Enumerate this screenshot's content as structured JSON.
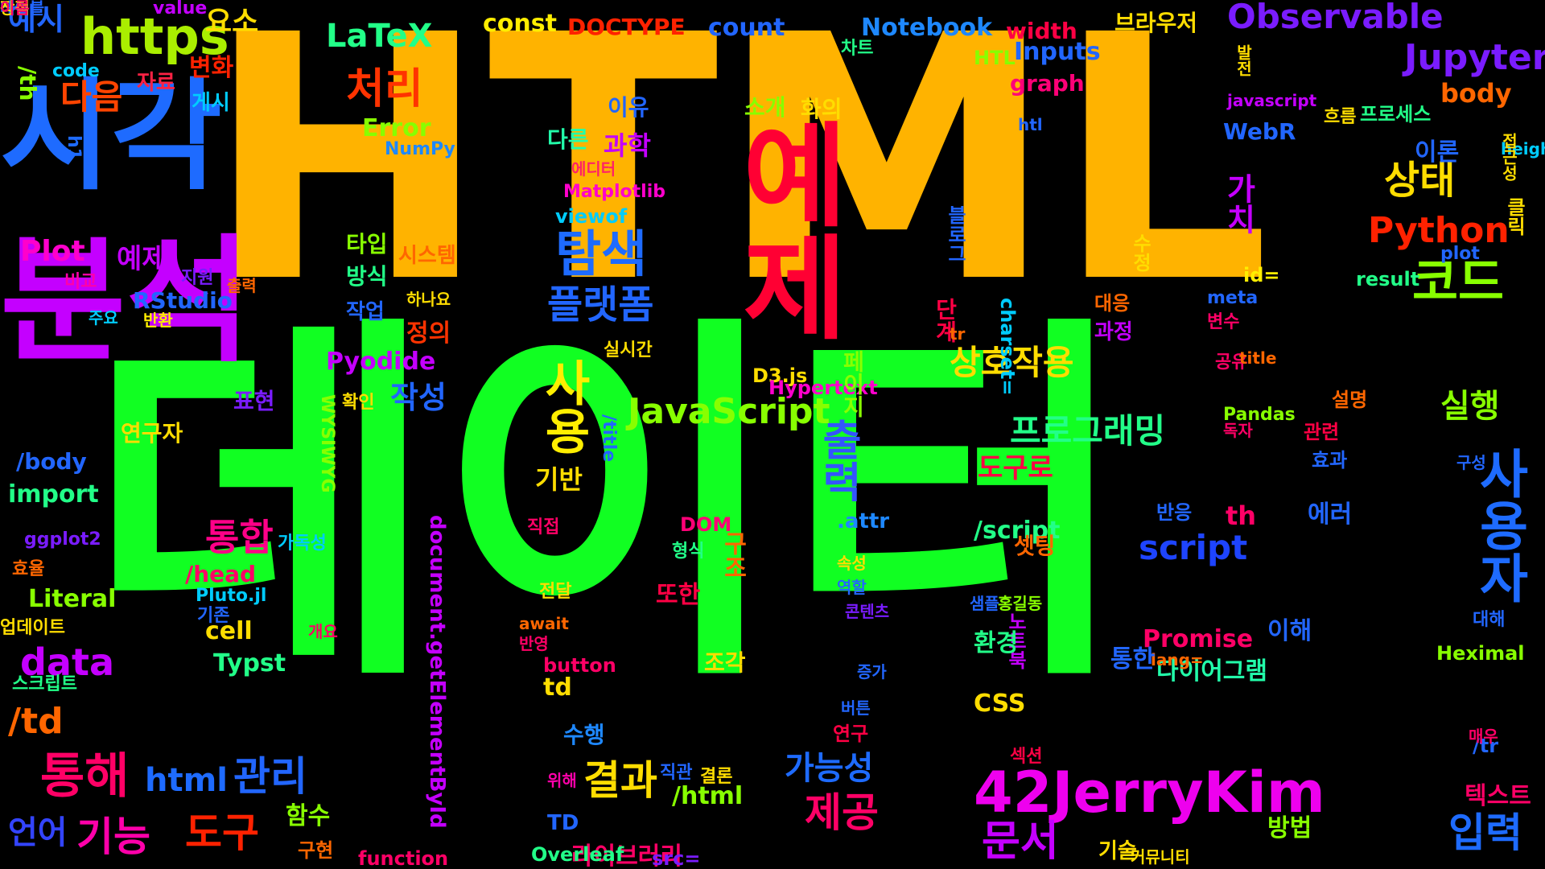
{
  "colors": {
    "background": "#000000",
    "palette": [
      "#ffbb00",
      "#00ff33",
      "#1e6bff",
      "#c800ff",
      "#ff0044",
      "#ff5500",
      "#aaff00",
      "#ffdd00",
      "#00ffaa",
      "#ff00cc",
      "#00ccff",
      "#7a1cff"
    ]
  },
  "words": [
    {
      "text": "HTML",
      "color": "#ffb300"
    },
    {
      "text": "데이터",
      "color": "#11ff22"
    },
    {
      "text": "시각",
      "color": "#1e6bff"
    },
    {
      "text": "분석",
      "color": "#c400ff"
    },
    {
      "text": "예제",
      "color": "#ff0033"
    },
    {
      "text": "https",
      "color": "#aaee00"
    },
    {
      "text": "Observable",
      "color": "#7a1cff"
    },
    {
      "text": "42JerryKim",
      "color": "#ee00ee"
    },
    {
      "text": "사용자",
      "color": "#1e6bff"
    },
    {
      "text": "탐색",
      "color": "#1e6bff"
    },
    {
      "text": "처리",
      "color": "#ff3300"
    },
    {
      "text": "LaTeX",
      "color": "#22ff88"
    },
    {
      "text": "사용",
      "color": "#ffee00"
    },
    {
      "text": "출력",
      "color": "#3355ff"
    },
    {
      "text": "코드",
      "color": "#88ff00"
    },
    {
      "text": "상태",
      "color": "#ffdd00"
    },
    {
      "text": "Python",
      "color": "#ff2200"
    },
    {
      "text": "Jupyter",
      "color": "#7a1cff"
    },
    {
      "text": "JavaScript",
      "color": "#88ff00"
    },
    {
      "text": "플랫폼",
      "color": "#2266ff"
    },
    {
      "text": "프로그래밍",
      "color": "#22ff88"
    },
    {
      "text": "상호작용",
      "color": "#ffdd00"
    },
    {
      "text": "script",
      "color": "#1e44ff"
    },
    {
      "text": "통합",
      "color": "#ff0088"
    },
    {
      "text": "통해",
      "color": "#ff0066"
    },
    {
      "text": "관리",
      "color": "#2266ff"
    },
    {
      "text": "html",
      "color": "#1e6bff"
    },
    {
      "text": "기능",
      "color": "#ff00aa"
    },
    {
      "text": "도구",
      "color": "#ff2200"
    },
    {
      "text": "언어",
      "color": "#3344ff"
    },
    {
      "text": "data",
      "color": "#c400ff"
    },
    {
      "text": "/td",
      "color": "#ff6600"
    },
    {
      "text": "결과",
      "color": "#ffdd00"
    },
    {
      "text": "문서",
      "color": "#c400ff"
    },
    {
      "text": "제공",
      "color": "#ff0066"
    },
    {
      "text": "가능성",
      "color": "#1e6bff"
    },
    {
      "text": "입력",
      "color": "#1e6bff"
    },
    {
      "text": "실행",
      "color": "#88ff00"
    },
    {
      "text": "다음",
      "color": "#ff4400"
    },
    {
      "text": "예시",
      "color": "#2266ff"
    },
    {
      "text": "요소",
      "color": "#ffdd00"
    },
    {
      "text": "Plot",
      "color": "#ff00cc"
    },
    {
      "text": "const",
      "color": "#ffee00"
    },
    {
      "text": "DOCTYPE",
      "color": "#ff2200"
    },
    {
      "text": "count",
      "color": "#2266ff"
    },
    {
      "text": "Notebook",
      "color": "#1e88ff"
    },
    {
      "text": "width",
      "color": "#ff0044"
    },
    {
      "text": "브라우저",
      "color": "#ffdd00"
    },
    {
      "text": "Inputs",
      "color": "#2266ff"
    },
    {
      "text": "HTL",
      "color": "#88ff00"
    },
    {
      "text": "graph",
      "color": "#ff0077"
    },
    {
      "text": "차트",
      "color": "#22ff88"
    },
    {
      "text": "/th",
      "color": "#88ff00"
    },
    {
      "text": "code",
      "color": "#00ccff"
    },
    {
      "text": "자료",
      "color": "#ff2244"
    },
    {
      "text": "변화",
      "color": "#ff2200"
    },
    {
      "text": "게시",
      "color": "#00ccff"
    },
    {
      "text": "value",
      "color": "#c400ff"
    },
    {
      "text": "h1",
      "color": "#1e6bff"
    },
    {
      "text": "Error",
      "color": "#88ff00"
    },
    {
      "text": "NumPy",
      "color": "#1e88ff"
    },
    {
      "text": "소개",
      "color": "#88ff00"
    },
    {
      "text": "화의",
      "color": "#ffdd00"
    },
    {
      "text": "이유",
      "color": "#2266ff"
    },
    {
      "text": "다른",
      "color": "#22ffaa"
    },
    {
      "text": "과학",
      "color": "#c400ff"
    },
    {
      "text": "에디터",
      "color": "#ff2266"
    },
    {
      "text": "Matplotlib",
      "color": "#ff00cc"
    },
    {
      "text": "viewof",
      "color": "#00ccff"
    },
    {
      "text": "타입",
      "color": "#88ff00"
    },
    {
      "text": "시스템",
      "color": "#ff6600"
    },
    {
      "text": "방식",
      "color": "#22ff88"
    },
    {
      "text": "하나요",
      "color": "#ffdd00"
    },
    {
      "text": "작업",
      "color": "#2266ff"
    },
    {
      "text": "정의",
      "color": "#ff3300"
    },
    {
      "text": "Pyodide",
      "color": "#c400ff"
    },
    {
      "text": "작성",
      "color": "#2266ff"
    },
    {
      "text": "확인",
      "color": "#ffdd00"
    },
    {
      "text": "예제",
      "color": "#c400ff"
    },
    {
      "text": "비교",
      "color": "#ff00aa"
    },
    {
      "text": "지원",
      "color": "#7a1cff"
    },
    {
      "text": "출력",
      "color": "#ff6600"
    },
    {
      "text": "RStudio",
      "color": "#2266ff"
    },
    {
      "text": "주요",
      "color": "#00ccff"
    },
    {
      "text": "반환",
      "color": "#ffee00"
    },
    {
      "text": "표현",
      "color": "#7a1cff"
    },
    {
      "text": "연구자",
      "color": "#ffdd00"
    },
    {
      "text": "/body",
      "color": "#2266ff"
    },
    {
      "text": "import",
      "color": "#22ff88"
    },
    {
      "text": "ggplot2",
      "color": "#7a1cff"
    },
    {
      "text": "가독성",
      "color": "#00ccff"
    },
    {
      "text": "효율",
      "color": "#ff6600"
    },
    {
      "text": "/head",
      "color": "#ff0066"
    },
    {
      "text": "Literal",
      "color": "#88ff00"
    },
    {
      "text": "Pluto.jl",
      "color": "#00ccff"
    },
    {
      "text": "기존",
      "color": "#2266ff"
    },
    {
      "text": "cell",
      "color": "#ffdd00"
    },
    {
      "text": "업데이트",
      "color": "#ffdd00"
    },
    {
      "text": "개요",
      "color": "#ff0066"
    },
    {
      "text": "Typst",
      "color": "#22ff88"
    },
    {
      "text": "스크립트",
      "color": "#22ff88"
    },
    {
      "text": "WYSIWYG",
      "color": "#88ff00"
    },
    {
      "text": "document.getElementById",
      "color": "#c400ff"
    },
    {
      "text": "/title",
      "color": "#2266ff"
    },
    {
      "text": "기반",
      "color": "#ffdd00"
    },
    {
      "text": "직접",
      "color": "#ff0066"
    },
    {
      "text": "DOM",
      "color": "#ff0077"
    },
    {
      "text": "형식",
      "color": "#22ff88"
    },
    {
      "text": "구조",
      "color": "#ff6600"
    },
    {
      "text": "또한",
      "color": "#ff0044"
    },
    {
      "text": "전달",
      "color": "#ffdd00"
    },
    {
      "text": "await",
      "color": "#ff6600"
    },
    {
      "text": "반영",
      "color": "#ff0066"
    },
    {
      "text": "button",
      "color": "#ff0066"
    },
    {
      "text": "td",
      "color": "#ffdd00"
    },
    {
      "text": "조각",
      "color": "#ffdd00"
    },
    {
      "text": "수행",
      "color": "#1e88ff"
    },
    {
      "text": "위해",
      "color": "#ff00aa"
    },
    {
      "text": "직관",
      "color": "#2266ff"
    },
    {
      "text": "결론",
      "color": "#ffdd00"
    },
    {
      "text": "/html",
      "color": "#88ff00"
    },
    {
      "text": "함수",
      "color": "#88ff00"
    },
    {
      "text": "구현",
      "color": "#ff6600"
    },
    {
      "text": "function",
      "color": "#ff0066"
    },
    {
      "text": "TD",
      "color": "#2266ff"
    },
    {
      "text": "라이브러리",
      "color": "#ff0066"
    },
    {
      "text": "Overleaf",
      "color": "#22ff88"
    },
    {
      "text": "src=",
      "color": "#7a1cff"
    },
    {
      "text": "D3.js",
      "color": "#ffdd00"
    },
    {
      "text": "Hypertext",
      "color": "#ff00cc"
    },
    {
      "text": ".attr",
      "color": "#1e88ff"
    },
    {
      "text": "속성",
      "color": "#ffdd00"
    },
    {
      "text": "역할",
      "color": "#2266ff"
    },
    {
      "text": "콘텐츠",
      "color": "#7a1cff"
    },
    {
      "text": "증가",
      "color": "#2266ff"
    },
    {
      "text": "버튼",
      "color": "#2266ff"
    },
    {
      "text": "연구",
      "color": "#ff0044"
    },
    {
      "text": "페이지",
      "color": "#88ff00"
    },
    {
      "text": "단계",
      "color": "#ff0044"
    },
    {
      "text": "tr",
      "color": "#ff6600"
    },
    {
      "text": "charset=",
      "color": "#00ccff"
    },
    {
      "text": "대응",
      "color": "#ff6600"
    },
    {
      "text": "과정",
      "color": "#c400ff"
    },
    {
      "text": "meta",
      "color": "#2266ff"
    },
    {
      "text": "변수",
      "color": "#ff0066"
    },
    {
      "text": "공유",
      "color": "#ff0066"
    },
    {
      "text": "title",
      "color": "#ff6600"
    },
    {
      "text": "id=",
      "color": "#ffee00"
    },
    {
      "text": "plot",
      "color": "#2266ff"
    },
    {
      "text": "result",
      "color": "#22ff88"
    },
    {
      "text": "Pandas",
      "color": "#88ff00"
    },
    {
      "text": "독자",
      "color": "#ff0066"
    },
    {
      "text": "설명",
      "color": "#ff6600"
    },
    {
      "text": "관련",
      "color": "#ff0044"
    },
    {
      "text": "효과",
      "color": "#2266ff"
    },
    {
      "text": "구성",
      "color": "#2266ff"
    },
    {
      "text": "도구로",
      "color": "#ff0044"
    },
    {
      "text": "/script",
      "color": "#22ff88"
    },
    {
      "text": "th",
      "color": "#ff0066"
    },
    {
      "text": "반응",
      "color": "#2266ff"
    },
    {
      "text": "에러",
      "color": "#2266ff"
    },
    {
      "text": "셋팅",
      "color": "#ff6600"
    },
    {
      "text": "샘플",
      "color": "#2266ff"
    },
    {
      "text": "홍길동",
      "color": "#88ff00"
    },
    {
      "text": "노트북",
      "color": "#c400ff"
    },
    {
      "text": "환경",
      "color": "#22ff88"
    },
    {
      "text": "Promise",
      "color": "#ff0066"
    },
    {
      "text": "다이어그램",
      "color": "#22ffaa"
    },
    {
      "text": "이해",
      "color": "#2266ff"
    },
    {
      "text": "Heximal",
      "color": "#88ff00"
    },
    {
      "text": "lang=",
      "color": "#ff6600"
    },
    {
      "text": "대해",
      "color": "#2266ff"
    },
    {
      "text": "/tr",
      "color": "#2266ff"
    },
    {
      "text": "CSS",
      "color": "#ffdd00"
    },
    {
      "text": "매우",
      "color": "#ff0066"
    },
    {
      "text": "텍스트",
      "color": "#ff0066"
    },
    {
      "text": "통한",
      "color": "#2266ff"
    },
    {
      "text": "섹션",
      "color": "#ff0044"
    },
    {
      "text": "방법",
      "color": "#88ff00"
    },
    {
      "text": "기술",
      "color": "#ffdd00"
    },
    {
      "text": "커뮤니티",
      "color": "#ffdd00"
    },
    {
      "text": "WebR",
      "color": "#2266ff"
    },
    {
      "text": "javascript",
      "color": "#c400ff"
    },
    {
      "text": "htl",
      "color": "#2266ff"
    },
    {
      "text": "발전",
      "color": "#ffdd00"
    },
    {
      "text": "흐름",
      "color": "#ffdd00"
    },
    {
      "text": "프로세스",
      "color": "#22ff88"
    },
    {
      "text": "이론",
      "color": "#2266ff"
    },
    {
      "text": "height",
      "color": "#00ccff"
    },
    {
      "text": "접근성",
      "color": "#ffdd00"
    },
    {
      "text": "body",
      "color": "#ff6600"
    },
    {
      "text": "클릭",
      "color": "#ffdd00"
    },
    {
      "text": "가치",
      "color": "#c400ff"
    },
    {
      "text": "수정",
      "color": "#ffdd00"
    },
    {
      "text": "블로그",
      "color": "#2266ff"
    },
    {
      "text": "실시간",
      "color": "#ffdd00"
    },
    {
      "text": "테이블",
      "color": "#2266ff"
    },
    {
      "text": "장점",
      "color": "#ffdd00"
    },
    {
      "text": "이름",
      "color": "#ff0066"
    }
  ]
}
